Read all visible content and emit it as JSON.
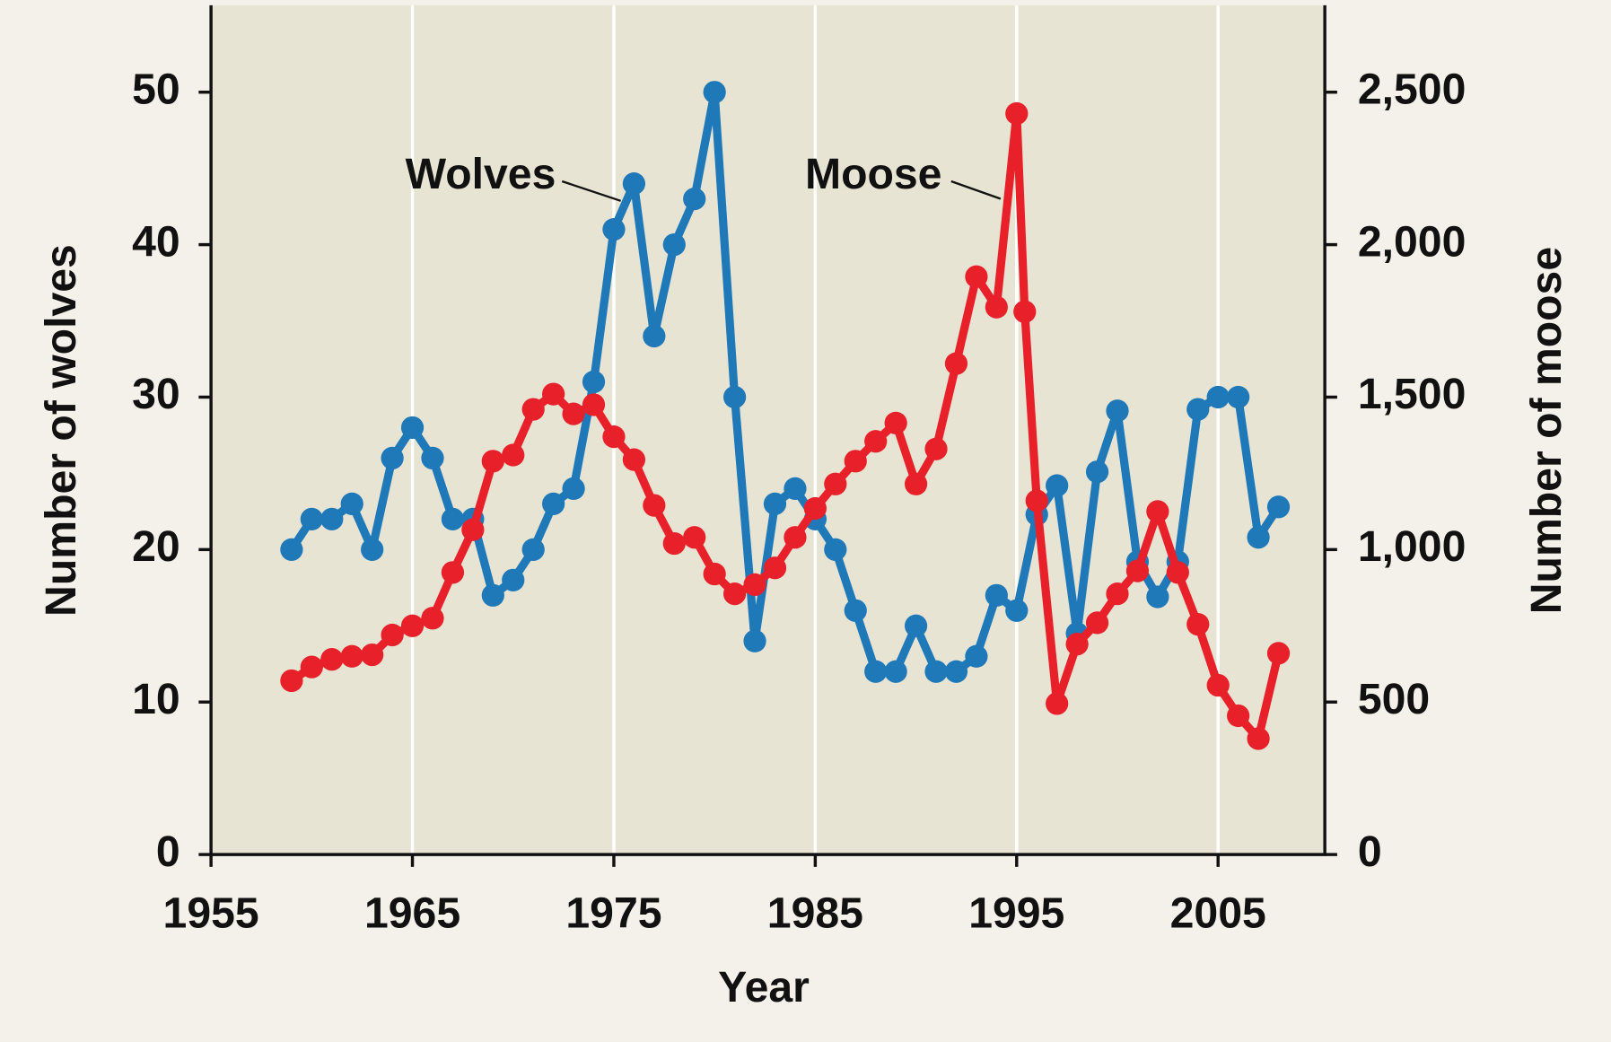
{
  "chart_data": {
    "type": "line",
    "x_label": "Year",
    "y_label": "Number of wolves",
    "y2_label": "Number of moose",
    "xlim": [
      1955,
      2010.3
    ],
    "xticks": [
      1955,
      1965,
      1975,
      1985,
      1995,
      2005
    ],
    "ylim": [
      0,
      55.7
    ],
    "yticks": [
      0,
      10,
      20,
      30,
      40,
      50
    ],
    "y2lim": [
      0,
      2785
    ],
    "y2ticks": [
      0,
      500,
      {
        "value": 1000,
        "label": "1,000"
      },
      {
        "value": 1500,
        "label": "1,500"
      },
      {
        "value": 2000,
        "label": "2,000"
      },
      {
        "value": 2500,
        "label": "2,500"
      }
    ],
    "grid": "x",
    "series": [
      {
        "name": "Wolves",
        "color": "#1f78b8",
        "x": [
          1959,
          1960,
          1961,
          1962,
          1963,
          1964,
          1965,
          1966,
          1967,
          1968,
          1969,
          1970,
          1971,
          1972,
          1973,
          1974,
          1975,
          1976,
          1977,
          1978,
          1979,
          1980,
          1981,
          1982,
          1983,
          1984,
          1985,
          1986,
          1987,
          1988,
          1989,
          1990,
          1991,
          1992,
          1993,
          1994,
          1995,
          1996,
          1997,
          1998,
          1999,
          2000,
          2001,
          2002,
          2003,
          2004,
          2005,
          2006,
          2007,
          2008
        ],
        "values": [
          20,
          22,
          22,
          23,
          20,
          26,
          28,
          26,
          22,
          22,
          17,
          18,
          20,
          23,
          24,
          31,
          41,
          44,
          34,
          40,
          43,
          50,
          30,
          14,
          23,
          24,
          22,
          20,
          16,
          12,
          12,
          15,
          12,
          12,
          13,
          17,
          16,
          22.3,
          24.2,
          14.5,
          25.1,
          29.1,
          19.2,
          16.9,
          19.2,
          29.2,
          30,
          30,
          20.8,
          22.8
        ]
      },
      {
        "name": "Moose",
        "color": "#e8202a",
        "axis": "y2",
        "x": [
          1959,
          1960,
          1961,
          1962,
          1963,
          1964,
          1965,
          1966,
          1967,
          1968,
          1969,
          1970,
          1971,
          1972,
          1973,
          1974,
          1975,
          1976,
          1977,
          1978,
          1979,
          1980,
          1981,
          1982,
          1983,
          1984,
          1985,
          1986,
          1987,
          1988,
          1989,
          1990,
          1991,
          1992,
          1993,
          1994,
          1995,
          1995.4,
          1996,
          1997,
          1998,
          1999,
          2000,
          2001,
          2002,
          2003,
          2004,
          2005,
          2006,
          2007,
          2008
        ],
        "values": [
          570,
          615,
          640,
          650,
          655,
          720,
          750,
          775,
          925,
          1065,
          1290,
          1310,
          1460,
          1510,
          1445,
          1475,
          1370,
          1295,
          1145,
          1020,
          1040,
          920,
          855,
          885,
          940,
          1040,
          1135,
          1215,
          1290,
          1355,
          1415,
          1215,
          1330,
          1610,
          1895,
          1795,
          2430,
          1780,
          1160,
          495,
          690,
          760,
          855,
          930,
          1125,
          925,
          755,
          555,
          455,
          380,
          660
        ]
      }
    ]
  }
}
